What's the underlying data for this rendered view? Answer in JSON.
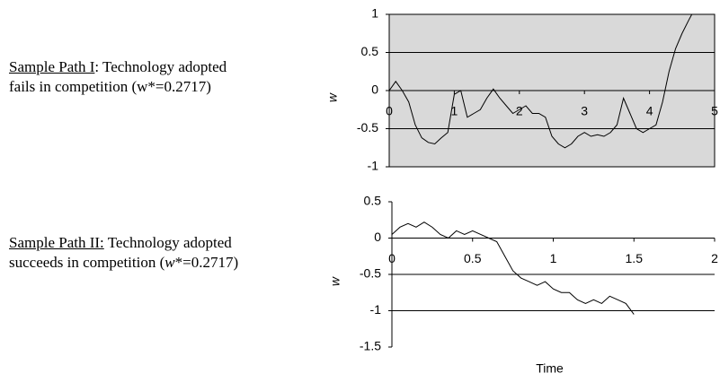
{
  "captions": [
    {
      "label": "Sample Path I",
      "line1": ": Technology adopted",
      "line2": "fails in competition (w*=0.2717)"
    },
    {
      "label": "Sample Path II:",
      "line1": " Technology adopted",
      "line2a": "succeeds in competition (",
      "line2b": "w",
      "line2c": "*=0.2717)"
    }
  ],
  "chart_data": [
    {
      "type": "line",
      "y_label": "w",
      "background": "#d9d9d9",
      "x": [
        0,
        0.1,
        0.2,
        0.3,
        0.4,
        0.5,
        0.6,
        0.7,
        0.8,
        0.9,
        1.0,
        1.1,
        1.2,
        1.3,
        1.4,
        1.5,
        1.6,
        1.7,
        1.8,
        1.9,
        2.0,
        2.1,
        2.2,
        2.3,
        2.4,
        2.5,
        2.6,
        2.7,
        2.8,
        2.9,
        3.0,
        3.1,
        3.2,
        3.3,
        3.4,
        3.5,
        3.6,
        3.7,
        3.8,
        3.9,
        4.0,
        4.1,
        4.2,
        4.3,
        4.4,
        4.5,
        4.6,
        4.65
      ],
      "series": [
        {
          "color": "#000000",
          "values": [
            0,
            0.12,
            0.0,
            -0.15,
            -0.45,
            -0.62,
            -0.68,
            -0.7,
            -0.62,
            -0.55,
            -0.05,
            0.0,
            -0.35,
            -0.3,
            -0.25,
            -0.1,
            0.02,
            -0.1,
            -0.2,
            -0.3,
            -0.25,
            -0.2,
            -0.3,
            -0.3,
            -0.35,
            -0.6,
            -0.7,
            -0.75,
            -0.7,
            -0.6,
            -0.55,
            -0.6,
            -0.58,
            -0.6,
            -0.55,
            -0.45,
            -0.1,
            -0.3,
            -0.5,
            -0.55,
            -0.5,
            -0.45,
            -0.15,
            0.25,
            0.55,
            0.75,
            0.92,
            1.0
          ]
        }
      ],
      "xlim": [
        0,
        5
      ],
      "xticks": [
        0,
        1,
        2,
        3,
        4,
        5
      ],
      "ylim": [
        -1,
        1
      ],
      "yticks": [
        1,
        0.5,
        0,
        -0.5,
        -1
      ],
      "grid": true
    },
    {
      "type": "line",
      "y_label": "w",
      "x_label": "Time",
      "x": [
        0,
        0.05,
        0.1,
        0.15,
        0.2,
        0.25,
        0.3,
        0.35,
        0.4,
        0.45,
        0.5,
        0.55,
        0.6,
        0.65,
        0.7,
        0.75,
        0.8,
        0.85,
        0.9,
        0.95,
        1.0,
        1.05,
        1.1,
        1.15,
        1.2,
        1.25,
        1.3,
        1.35,
        1.4,
        1.45,
        1.5
      ],
      "series": [
        {
          "color": "#000000",
          "values": [
            0.05,
            0.15,
            0.2,
            0.15,
            0.22,
            0.15,
            0.05,
            0.0,
            0.1,
            0.05,
            0.1,
            0.05,
            0.0,
            -0.05,
            -0.25,
            -0.45,
            -0.55,
            -0.6,
            -0.65,
            -0.6,
            -0.7,
            -0.75,
            -0.75,
            -0.85,
            -0.9,
            -0.85,
            -0.9,
            -0.8,
            -0.85,
            -0.9,
            -1.05
          ]
        }
      ],
      "xlim": [
        0,
        2
      ],
      "xticks": [
        0,
        0.5,
        1,
        1.5,
        2
      ],
      "ylim": [
        -1.5,
        0.5
      ],
      "yticks": [
        0.5,
        0,
        -0.5,
        -1,
        -1.5
      ],
      "grid": true
    }
  ]
}
